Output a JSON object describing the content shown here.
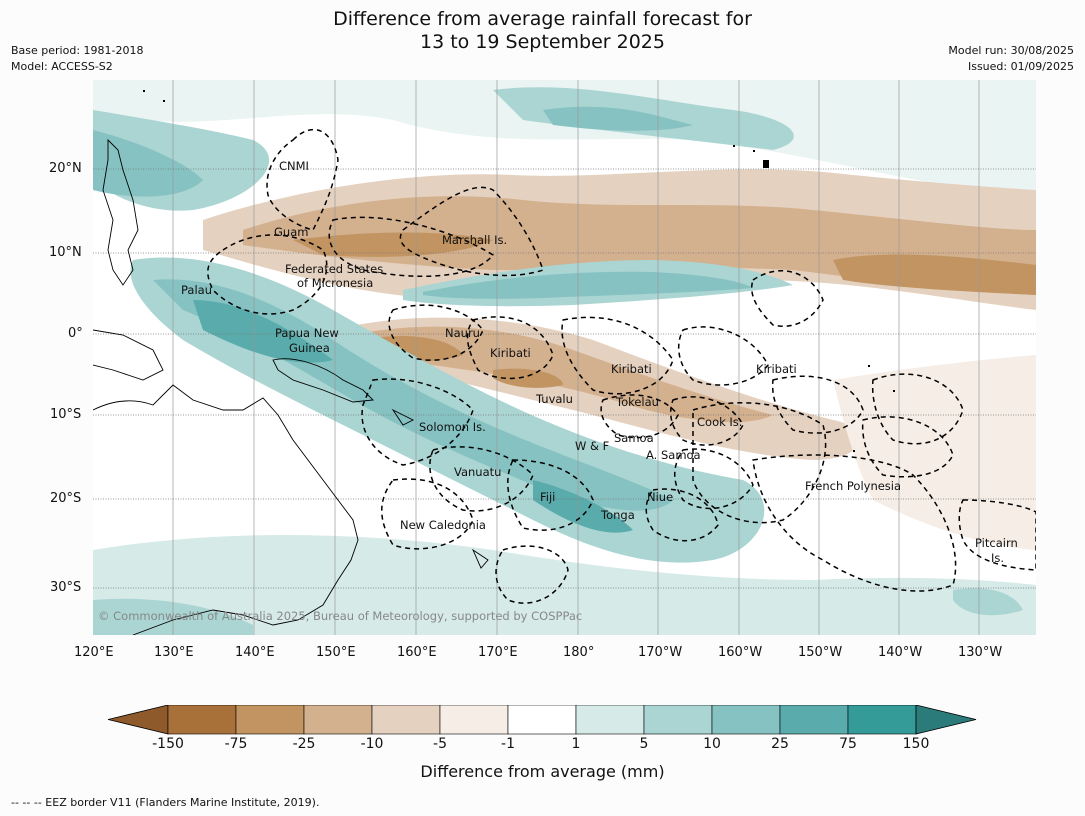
{
  "title_line1": "Difference from average rainfall forecast for",
  "title_line2": "13 to 19 September 2025",
  "meta_left": {
    "base_period": "Base period: 1981-2018",
    "model": "Model: ACCESS-S2"
  },
  "meta_right": {
    "model_run": "Model run: 30/08/2025",
    "issued": "Issued: 01/09/2025"
  },
  "lat_labels": [
    "20°N",
    "10°N",
    "0°",
    "10°S",
    "20°S",
    "30°S"
  ],
  "lon_labels": [
    "120°E",
    "130°E",
    "140°E",
    "150°E",
    "160°E",
    "170°E",
    "180°",
    "170°W",
    "160°W",
    "150°W",
    "140°W",
    "130°W"
  ],
  "places": [
    "CNMI",
    "Guam",
    "Marshall Is.",
    "Federated States",
    "of Micronesia",
    "Palau",
    "Papua New",
    "Guinea",
    "Nauru",
    "Kiribati",
    "Kiribati",
    "Kiribati",
    "Tuvalu",
    "Tokelau",
    "Cook Is.",
    "Solomon Is.",
    "Samoa",
    "W & F",
    "A. Samoa",
    "Vanuatu",
    "Fiji",
    "Niue",
    "French Polynesia",
    "Tonga",
    "New Caledonia",
    "Pitcairn",
    "Is."
  ],
  "copyright": "© Commonwealth of Australia 2025, Bureau of Meteorology, supported by COSPPac",
  "colorbar": {
    "ticks": [
      "-150",
      "-75",
      "-25",
      "-10",
      "-5",
      "-1",
      "1",
      "5",
      "10",
      "25",
      "75",
      "150"
    ],
    "colors": [
      "#a8713a",
      "#c19462",
      "#d3b08e",
      "#e5d1bf",
      "#f5ede6",
      "#ffffff",
      "#d6eae8",
      "#aad5d3",
      "#86c2c2",
      "#5aabab",
      "#349b99"
    ],
    "under_color": "#8e5a2c",
    "over_color": "#2b7b7a",
    "label": "Difference from average (mm)"
  },
  "footer": "--  --  -- EEZ border V11 (Flanders Marine Institute, 2019)."
}
